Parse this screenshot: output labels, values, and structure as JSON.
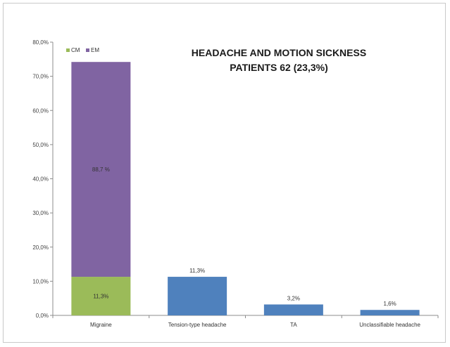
{
  "chart_data": {
    "type": "bar",
    "stacked": true,
    "title_lines": [
      "HEADACHE AND MOTION SICKNESS",
      "PATIENTS 62 (23,3%)"
    ],
    "categories": [
      "Migraine",
      "Tension-type headache",
      "TA",
      "Unclassifiable headache"
    ],
    "ylim": [
      0,
      80
    ],
    "yticks": [
      0,
      10,
      20,
      30,
      40,
      50,
      60,
      70,
      80
    ],
    "ytick_labels": [
      "0,0%",
      "10,0%",
      "20,0%",
      "30,0%",
      "40,0%",
      "50,0%",
      "60,0%",
      "70,0%",
      "80,0%"
    ],
    "grid": false,
    "legend_position": "top-left",
    "legend": [
      {
        "label": "CM",
        "color": "#9bbb59"
      },
      {
        "label": "EM",
        "color": "#8064a2"
      }
    ],
    "stack": {
      "category": "Migraine",
      "segments": [
        {
          "name": "CM",
          "value": 11.3,
          "label": "11,3%",
          "color": "#9bbb59"
        },
        {
          "name": "EM",
          "value": 62.9,
          "label": "88,7 %",
          "color": "#8064a2"
        }
      ]
    },
    "bars": [
      {
        "category": "Tension-type headache",
        "value": 11.3,
        "label": "11,3%",
        "color": "#4f81bd"
      },
      {
        "category": "TA",
        "value": 3.2,
        "label": "3,2%",
        "color": "#4f81bd"
      },
      {
        "category": "Unclassifiable headache",
        "value": 1.6,
        "label": "1,6%",
        "color": "#4f81bd"
      }
    ]
  }
}
